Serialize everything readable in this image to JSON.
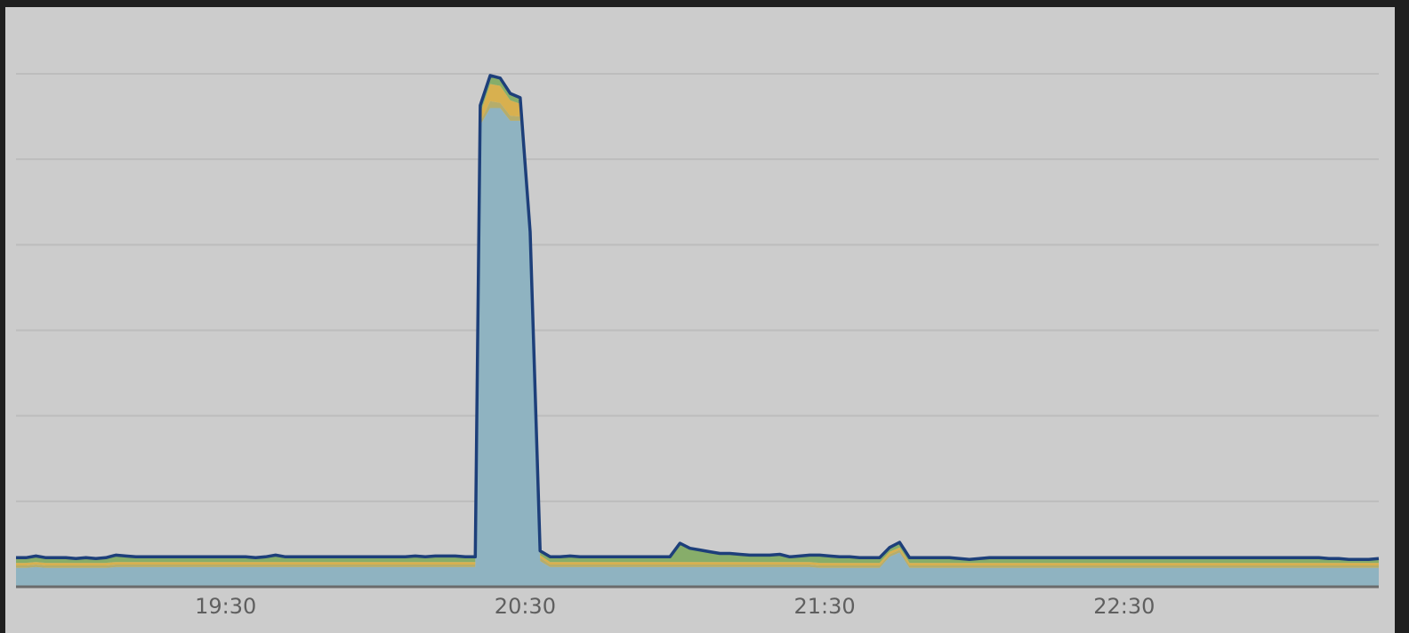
{
  "chart_data": {
    "type": "area",
    "stacked": true,
    "title": "",
    "xlabel": "",
    "ylabel": "",
    "x_tick_labels": [
      "19:30",
      "20:30",
      "21:30",
      "22:30"
    ],
    "x_ticks_minutes": [
      0,
      60,
      120,
      180
    ],
    "xlim_minutes": [
      -42,
      231
    ],
    "ylim": [
      0,
      600
    ],
    "y_gridlines": [
      100,
      200,
      300,
      400,
      500,
      600
    ],
    "y_tick_labels_visible": false,
    "grid": true,
    "legend": "none",
    "x_minutes_from_19_30": [
      -42,
      -40,
      -38,
      -36,
      -34,
      -32,
      -30,
      -28,
      -26,
      -24,
      -22,
      -20,
      -18,
      -16,
      -14,
      -12,
      -10,
      -8,
      -6,
      -4,
      -2,
      0,
      2,
      4,
      6,
      8,
      10,
      12,
      14,
      16,
      18,
      20,
      22,
      24,
      26,
      28,
      30,
      32,
      34,
      36,
      38,
      40,
      42,
      44,
      46,
      48,
      50,
      51,
      53,
      55,
      57,
      59,
      61,
      63,
      65,
      67,
      69,
      71,
      73,
      75,
      77,
      79,
      81,
      83,
      85,
      87,
      89,
      91,
      93,
      95,
      97,
      99,
      101,
      103,
      105,
      107,
      109,
      111,
      113,
      115,
      117,
      119,
      121,
      123,
      125,
      127,
      129,
      131,
      133,
      135,
      137,
      139,
      141,
      143,
      145,
      147,
      149,
      151,
      153,
      155,
      157,
      159,
      161,
      163,
      165,
      167,
      169,
      171,
      173,
      175,
      177,
      179,
      181,
      183,
      185,
      187,
      189,
      191,
      193,
      195,
      197,
      199,
      201,
      203,
      205,
      207,
      209,
      211,
      213,
      215,
      217,
      219,
      221,
      223,
      225,
      227,
      229,
      231
    ],
    "series": [
      {
        "color": "#8fb3c1",
        "values": [
          22,
          22,
          23,
          22,
          22,
          22,
          22,
          22,
          22,
          22,
          23,
          23,
          23,
          23,
          23,
          23,
          23,
          23,
          23,
          23,
          23,
          23,
          23,
          23,
          23,
          23,
          23,
          23,
          23,
          23,
          23,
          23,
          23,
          23,
          23,
          23,
          23,
          23,
          23,
          23,
          23,
          23,
          23,
          23,
          23,
          23,
          23,
          540,
          560,
          560,
          545,
          545,
          400,
          30,
          23,
          23,
          23,
          23,
          23,
          23,
          23,
          23,
          23,
          23,
          23,
          23,
          23,
          23,
          23,
          23,
          23,
          23,
          23,
          23,
          23,
          23,
          23,
          23,
          23,
          23,
          23,
          22,
          22,
          22,
          22,
          22,
          22,
          22,
          35,
          40,
          22,
          22,
          22,
          22,
          22,
          22,
          22,
          22,
          22,
          22,
          22,
          22,
          22,
          22,
          22,
          22,
          22,
          22,
          22,
          22,
          22,
          22,
          22,
          22,
          22,
          22,
          22,
          22,
          22,
          22,
          22,
          22,
          22,
          22,
          22,
          22,
          22,
          22,
          22,
          22,
          22,
          22,
          22,
          22,
          22,
          22,
          22,
          22
        ]
      },
      {
        "color": "#b5ad6c",
        "values": [
          3,
          3,
          3,
          3,
          3,
          3,
          3,
          3,
          3,
          3,
          3,
          3,
          3,
          3,
          3,
          3,
          3,
          3,
          3,
          3,
          3,
          3,
          3,
          3,
          3,
          3,
          3,
          3,
          3,
          3,
          3,
          3,
          3,
          3,
          3,
          3,
          3,
          3,
          3,
          3,
          3,
          3,
          3,
          3,
          3,
          3,
          3,
          4,
          8,
          6,
          6,
          5,
          4,
          4,
          3,
          3,
          3,
          3,
          3,
          3,
          3,
          3,
          3,
          3,
          3,
          3,
          3,
          3,
          3,
          3,
          3,
          3,
          3,
          3,
          3,
          3,
          3,
          3,
          3,
          3,
          3,
          3,
          3,
          3,
          3,
          3,
          3,
          3,
          3,
          3,
          3,
          3,
          3,
          3,
          3,
          3,
          3,
          3,
          3,
          3,
          3,
          3,
          3,
          3,
          3,
          3,
          3,
          3,
          3,
          3,
          3,
          3,
          3,
          3,
          3,
          3,
          3,
          3,
          3,
          3,
          3,
          3,
          3,
          3,
          3,
          3,
          3,
          3,
          3,
          3,
          3,
          3,
          3,
          3,
          3,
          3,
          3,
          3
        ]
      },
      {
        "color": "#d8b04f",
        "values": [
          3,
          3,
          3,
          3,
          3,
          3,
          3,
          3,
          3,
          3,
          3,
          3,
          3,
          3,
          3,
          3,
          3,
          3,
          3,
          3,
          3,
          3,
          3,
          3,
          3,
          3,
          3,
          3,
          3,
          3,
          3,
          3,
          3,
          3,
          3,
          3,
          3,
          3,
          3,
          3,
          3,
          3,
          3,
          3,
          3,
          3,
          3,
          10,
          20,
          20,
          18,
          15,
          5,
          3,
          3,
          3,
          3,
          3,
          3,
          3,
          3,
          3,
          3,
          3,
          3,
          3,
          3,
          3,
          3,
          3,
          3,
          3,
          3,
          3,
          3,
          3,
          3,
          3,
          3,
          3,
          3,
          3,
          3,
          3,
          3,
          3,
          3,
          3,
          3,
          3,
          3,
          3,
          3,
          3,
          3,
          3,
          3,
          3,
          3,
          3,
          3,
          3,
          3,
          3,
          3,
          3,
          3,
          3,
          3,
          3,
          3,
          3,
          3,
          3,
          3,
          3,
          3,
          3,
          3,
          3,
          3,
          3,
          3,
          3,
          3,
          3,
          3,
          3,
          3,
          3,
          3,
          3,
          3,
          3,
          3,
          3,
          3,
          3
        ]
      },
      {
        "color": "#87ad6a",
        "values": [
          6,
          6,
          7,
          6,
          6,
          6,
          5,
          6,
          5,
          6,
          8,
          7,
          6,
          6,
          6,
          6,
          6,
          6,
          6,
          6,
          6,
          6,
          6,
          6,
          5,
          6,
          8,
          6,
          6,
          6,
          6,
          6,
          6,
          6,
          6,
          6,
          6,
          6,
          6,
          6,
          7,
          6,
          7,
          7,
          7,
          6,
          6,
          9,
          10,
          9,
          8,
          7,
          6,
          5,
          6,
          6,
          7,
          6,
          6,
          6,
          6,
          6,
          6,
          6,
          6,
          6,
          6,
          22,
          16,
          14,
          12,
          10,
          10,
          9,
          8,
          8,
          8,
          9,
          6,
          7,
          8,
          9,
          8,
          7,
          7,
          6,
          6,
          6,
          5,
          6,
          6,
          6,
          6,
          6,
          6,
          5,
          4,
          5,
          6,
          6,
          6,
          6,
          6,
          6,
          6,
          6,
          6,
          6,
          6,
          6,
          6,
          6,
          6,
          6,
          6,
          6,
          6,
          6,
          6,
          6,
          6,
          6,
          6,
          6,
          6,
          6,
          6,
          6,
          6,
          6,
          6,
          6,
          5,
          5,
          4,
          4,
          4,
          5
        ]
      }
    ]
  }
}
